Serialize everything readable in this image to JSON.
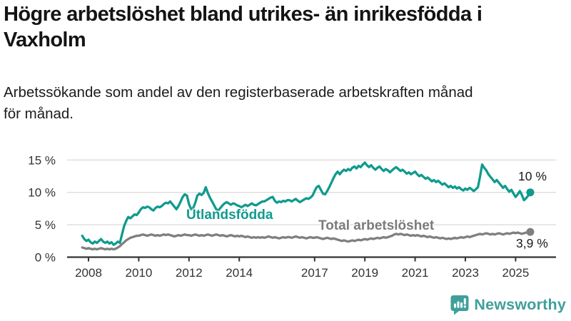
{
  "header": {
    "title_line1": "Högre arbetslöshet bland utrikes- än inrikesfödda i",
    "title_line2": "Vaxholm",
    "subtitle_line1": "Arbetssökande som andel av den registerbaserade arbetskraften månad",
    "subtitle_line2": "för månad."
  },
  "branding": {
    "logo_text": "Newsworthy",
    "logo_color": "#3f9f9a"
  },
  "chart_data": {
    "type": "line",
    "title": "Högre arbetslöshet bland utrikes- än inrikesfödda i Vaxholm",
    "subtitle": "Arbetssökande som andel av den registerbaserade arbetskraften månad för månad.",
    "unit": "%",
    "frequency": "monthly",
    "start": "2007-10",
    "ylim": [
      0,
      16
    ],
    "grid": true,
    "legend_position": "inline-labels",
    "colors": {
      "grid": "#dcdcdc",
      "axis": "#333333"
    },
    "y_axis": {
      "ticks": [
        {
          "value": 0,
          "label": "0 %"
        },
        {
          "value": 5,
          "label": "5 %"
        },
        {
          "value": 10,
          "label": "10 %"
        },
        {
          "value": 15,
          "label": "15 %"
        }
      ]
    },
    "x_axis": {
      "ticks": [
        {
          "value": 2008,
          "label": "2008"
        },
        {
          "value": 2010,
          "label": "2010"
        },
        {
          "value": 2012,
          "label": "2012"
        },
        {
          "value": 2014,
          "label": "2014"
        },
        {
          "value": 2017,
          "label": "2017"
        },
        {
          "value": 2019,
          "label": "2019"
        },
        {
          "value": 2021,
          "label": "2021"
        },
        {
          "value": 2023,
          "label": "2023"
        },
        {
          "value": 2025,
          "label": "2025"
        }
      ]
    },
    "series": [
      {
        "name": "Utlandsfödda",
        "label": "Utlandsfödda",
        "color": "#0f9b8e",
        "end_label": "10 %",
        "end_value": 10.0,
        "values": [
          3.3,
          2.8,
          2.5,
          2.7,
          2.3,
          2.1,
          2.4,
          2.2,
          2.5,
          2.8,
          2.4,
          2.2,
          2.4,
          2.1,
          2.3,
          1.9,
          2.1,
          2.4,
          2.2,
          3.5,
          4.8,
          5.6,
          6.2,
          6.0,
          6.3,
          6.6,
          6.5,
          6.9,
          7.4,
          7.7,
          7.6,
          7.8,
          7.7,
          7.4,
          7.2,
          7.6,
          7.8,
          7.7,
          7.9,
          8.2,
          8.4,
          8.3,
          8.6,
          8.2,
          7.8,
          7.4,
          7.9,
          8.6,
          9.3,
          9.7,
          9.5,
          8.2,
          7.4,
          7.6,
          8.4,
          9.5,
          9.8,
          9.6,
          9.9,
          10.8,
          9.9,
          9.2,
          8.6,
          8.0,
          7.4,
          7.2,
          7.6,
          8.0,
          8.3,
          8.5,
          8.3,
          8.1,
          8.3,
          8.2,
          8.0,
          7.9,
          7.7,
          7.9,
          8.1,
          7.9,
          8.1,
          8.3,
          8.1,
          8.0,
          8.2,
          8.4,
          8.6,
          8.6,
          8.8,
          9.0,
          9.2,
          9.3,
          8.7,
          8.4,
          8.6,
          8.5,
          8.7,
          8.6,
          8.8,
          8.8,
          8.6,
          8.8,
          9.0,
          8.7,
          8.5,
          8.7,
          8.9,
          9.1,
          9.0,
          9.2,
          9.5,
          10.2,
          10.8,
          11.0,
          10.4,
          9.8,
          9.7,
          10.2,
          10.8,
          11.5,
          12.2,
          12.8,
          13.2,
          12.8,
          13.2,
          13.5,
          13.3,
          13.6,
          13.4,
          13.8,
          14.0,
          13.7,
          14.1,
          13.9,
          14.3,
          14.6,
          14.2,
          13.9,
          14.2,
          13.8,
          13.5,
          13.8,
          14.0,
          13.6,
          13.3,
          13.6,
          13.4,
          13.1,
          13.4,
          13.7,
          13.9,
          13.6,
          13.3,
          13.5,
          13.2,
          12.9,
          13.1,
          12.8,
          13.0,
          13.2,
          12.8,
          12.5,
          12.7,
          12.4,
          12.1,
          12.3,
          12.0,
          11.7,
          11.9,
          11.6,
          11.8,
          11.5,
          11.2,
          11.4,
          11.1,
          10.8,
          11.0,
          10.7,
          10.9,
          10.6,
          10.8,
          10.5,
          10.3,
          10.6,
          10.4,
          10.7,
          10.5,
          10.2,
          10.5,
          10.8,
          12.4,
          14.3,
          13.8,
          13.4,
          12.8,
          12.4,
          12.0,
          11.6,
          11.9,
          11.5,
          11.1,
          10.7,
          11.0,
          10.5,
          10.1,
          10.4,
          9.8,
          9.3,
          9.7,
          10.2,
          9.6,
          8.8,
          9.1,
          9.5,
          10.0
        ]
      },
      {
        "name": "Total arbetslöshet",
        "label": "Total arbetslöshet",
        "color": "#7f7f7f",
        "end_label": "3,9 %",
        "end_value": 3.9,
        "values": [
          1.5,
          1.4,
          1.3,
          1.4,
          1.3,
          1.2,
          1.3,
          1.2,
          1.3,
          1.4,
          1.3,
          1.2,
          1.3,
          1.2,
          1.3,
          1.2,
          1.3,
          1.5,
          1.7,
          2.0,
          2.3,
          2.6,
          2.8,
          3.0,
          3.1,
          3.2,
          3.3,
          3.3,
          3.4,
          3.5,
          3.4,
          3.3,
          3.4,
          3.5,
          3.4,
          3.3,
          3.4,
          3.3,
          3.4,
          3.5,
          3.4,
          3.5,
          3.4,
          3.3,
          3.2,
          3.3,
          3.4,
          3.3,
          3.4,
          3.5,
          3.4,
          3.4,
          3.3,
          3.4,
          3.5,
          3.4,
          3.3,
          3.4,
          3.3,
          3.4,
          3.5,
          3.4,
          3.3,
          3.4,
          3.5,
          3.4,
          3.3,
          3.4,
          3.3,
          3.2,
          3.3,
          3.4,
          3.3,
          3.2,
          3.3,
          3.2,
          3.3,
          3.2,
          3.1,
          3.2,
          3.1,
          3.0,
          3.1,
          3.0,
          3.1,
          3.0,
          3.1,
          3.0,
          3.1,
          3.2,
          3.1,
          3.0,
          3.1,
          3.0,
          2.9,
          3.0,
          3.1,
          3.0,
          3.1,
          3.1,
          3.0,
          3.1,
          3.2,
          3.1,
          3.0,
          3.1,
          3.0,
          2.9,
          3.0,
          3.1,
          3.0,
          3.0,
          3.1,
          3.0,
          2.9,
          2.8,
          2.9,
          3.0,
          2.9,
          2.8,
          2.9,
          2.8,
          2.7,
          2.6,
          2.5,
          2.6,
          2.5,
          2.4,
          2.5,
          2.6,
          2.5,
          2.6,
          2.7,
          2.6,
          2.7,
          2.8,
          2.7,
          2.8,
          2.9,
          2.8,
          2.9,
          3.0,
          2.9,
          3.0,
          3.1,
          3.0,
          3.1,
          3.2,
          3.3,
          3.5,
          3.6,
          3.5,
          3.6,
          3.5,
          3.4,
          3.5,
          3.4,
          3.3,
          3.4,
          3.3,
          3.4,
          3.3,
          3.2,
          3.3,
          3.2,
          3.1,
          3.2,
          3.1,
          3.0,
          3.1,
          3.0,
          2.9,
          3.0,
          2.9,
          2.8,
          2.9,
          2.8,
          2.9,
          3.0,
          2.9,
          3.0,
          3.1,
          3.0,
          3.1,
          3.2,
          3.1,
          3.2,
          3.3,
          3.4,
          3.5,
          3.6,
          3.5,
          3.6,
          3.7,
          3.6,
          3.5,
          3.6,
          3.5,
          3.6,
          3.7,
          3.6,
          3.5,
          3.6,
          3.7,
          3.6,
          3.7,
          3.8,
          3.7,
          3.8,
          3.7,
          3.6,
          3.7,
          3.8,
          3.8,
          3.9
        ]
      }
    ]
  }
}
